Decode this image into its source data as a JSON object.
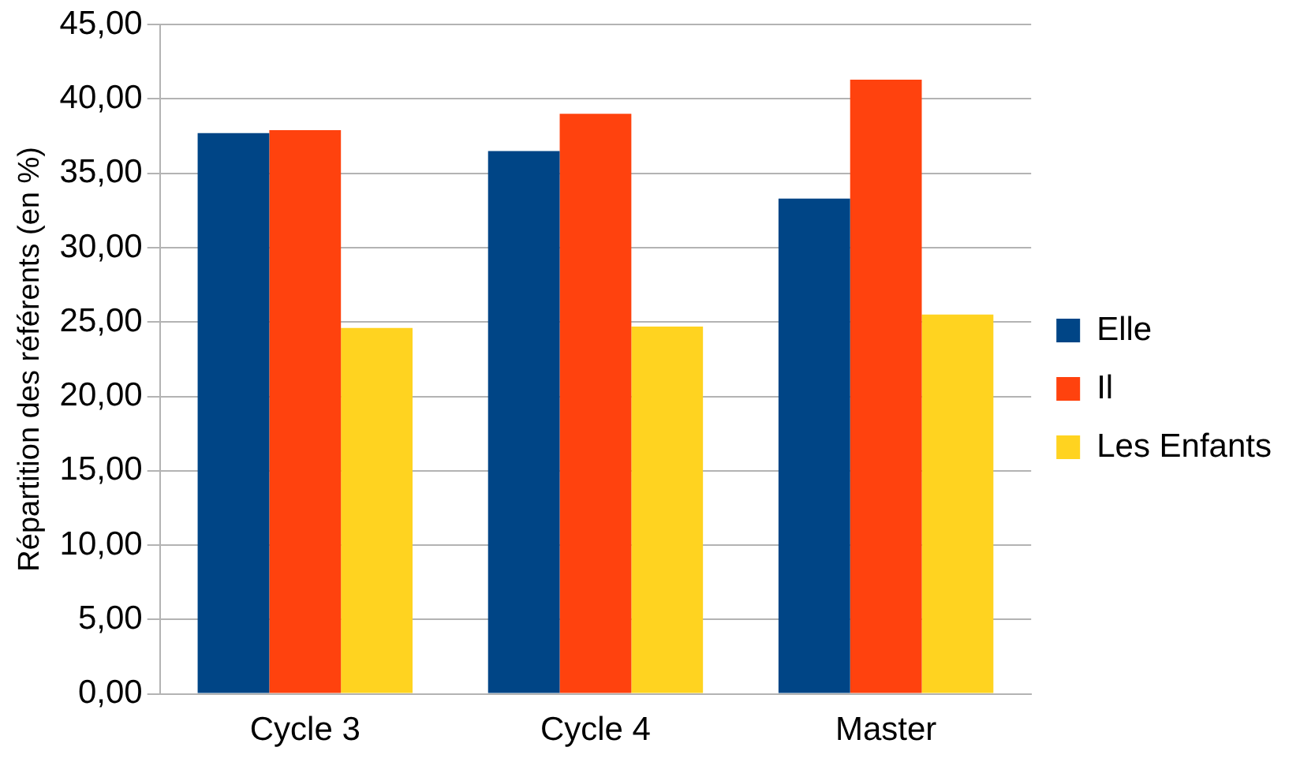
{
  "chart_data": {
    "type": "bar",
    "ylabel": "Répartition des référents (en %)",
    "categories": [
      "Cycle 3",
      "Cycle 4",
      "Master"
    ],
    "series": [
      {
        "name": "Elle",
        "color": "#004586",
        "values": [
          37.7,
          36.5,
          33.3
        ]
      },
      {
        "name": "Il",
        "color": "#ff420e",
        "values": [
          37.9,
          39.0,
          41.3
        ]
      },
      {
        "name": "Les Enfants",
        "color": "#ffd320",
        "values": [
          24.6,
          24.7,
          25.5
        ]
      }
    ],
    "ylim": [
      0,
      45
    ],
    "yticks": [
      {
        "value": 0,
        "label": "0,00"
      },
      {
        "value": 5,
        "label": "5,00"
      },
      {
        "value": 10,
        "label": "10,00"
      },
      {
        "value": 15,
        "label": "15,00"
      },
      {
        "value": 20,
        "label": "20,00"
      },
      {
        "value": 25,
        "label": "25,00"
      },
      {
        "value": 30,
        "label": "30,00"
      },
      {
        "value": 35,
        "label": "35,00"
      },
      {
        "value": 40,
        "label": "40,00"
      },
      {
        "value": 45,
        "label": "45,00"
      }
    ],
    "grid": "y",
    "legend": "right"
  }
}
